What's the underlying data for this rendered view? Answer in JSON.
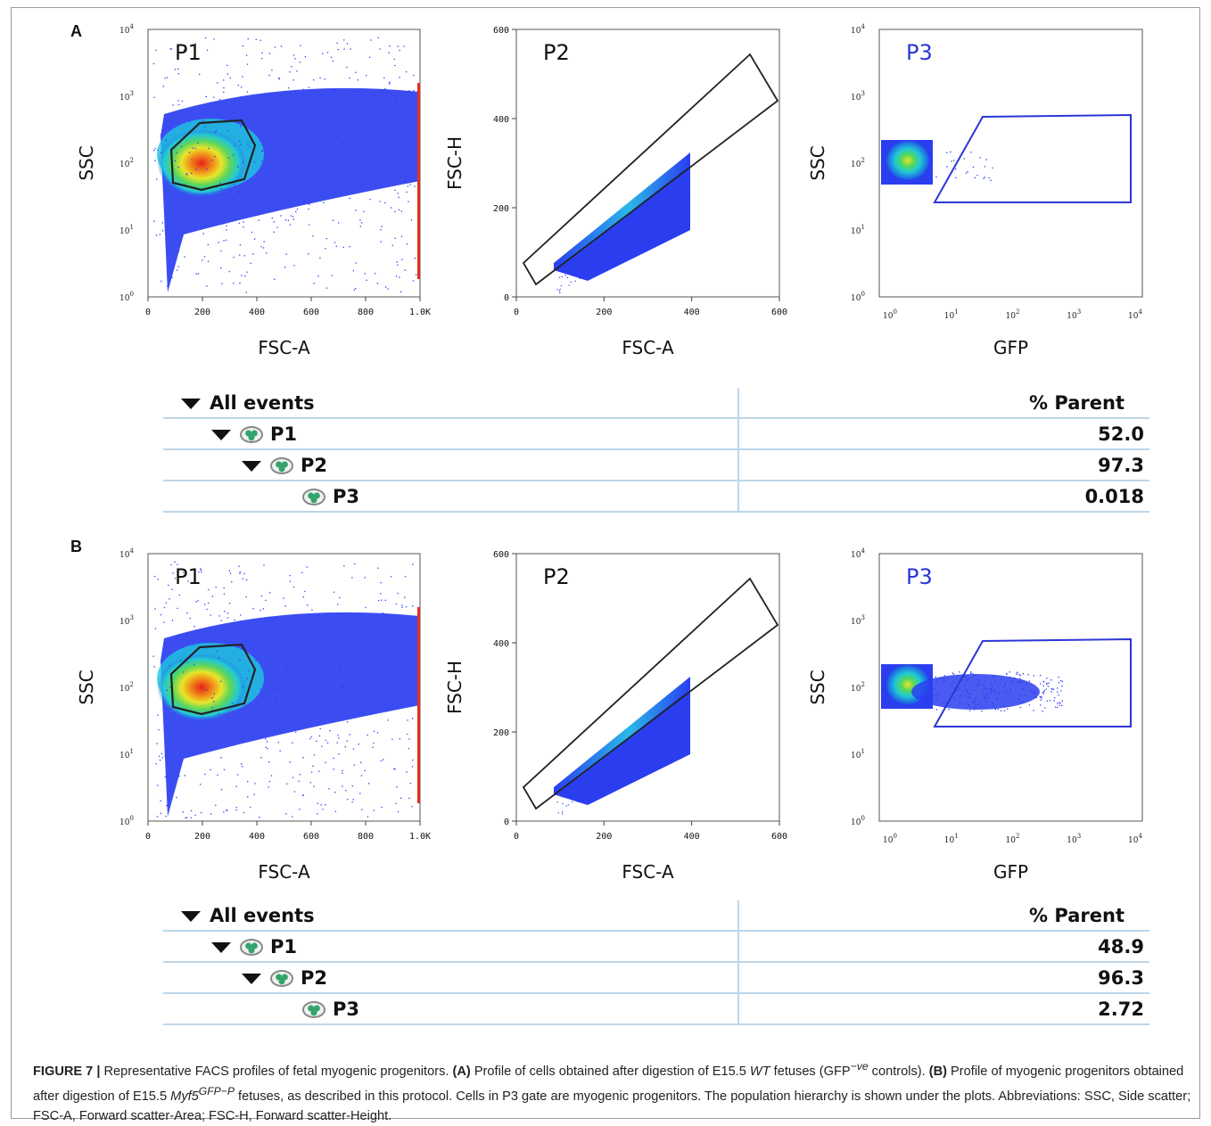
{
  "figure": {
    "panels": [
      {
        "letter": "A",
        "plots": {
          "p1": {
            "gate": "P1",
            "xlabel": "FSC-A",
            "ylabel": "SSC",
            "xticks": [
              "0",
              "200",
              "400",
              "600",
              "800",
              "1.0K"
            ],
            "yticks": [
              "10",
              "10",
              "10",
              "10",
              "10"
            ],
            "ytick_exp": [
              "0",
              "1",
              "2",
              "3",
              "4"
            ]
          },
          "p2": {
            "gate": "P2",
            "xlabel": "FSC-A",
            "ylabel": "FSC-H",
            "xticks": [
              "0",
              "200",
              "400",
              "600"
            ],
            "yticks": [
              "0",
              "200",
              "400",
              "600"
            ]
          },
          "p3": {
            "gate": "P3",
            "xlabel": "GFP",
            "ylabel": "SSC",
            "xticks": [
              "10",
              "10",
              "10",
              "10",
              "10"
            ],
            "xtick_exp": [
              "0",
              "1",
              "2",
              "3",
              "4"
            ],
            "yticks": [
              "10",
              "10",
              "10",
              "10",
              "10"
            ],
            "ytick_exp": [
              "0",
              "1",
              "2",
              "3",
              "4"
            ]
          }
        },
        "hierarchy": {
          "header": "% Parent",
          "rows": [
            {
              "label": "All events",
              "value": ""
            },
            {
              "label": "P1",
              "value": "52.0"
            },
            {
              "label": "P2",
              "value": "97.3"
            },
            {
              "label": "P3",
              "value": "0.018"
            }
          ]
        }
      },
      {
        "letter": "B",
        "plots": {
          "p1": {
            "gate": "P1",
            "xlabel": "FSC-A",
            "ylabel": "SSC",
            "xticks": [
              "0",
              "200",
              "400",
              "600",
              "800",
              "1.0K"
            ],
            "yticks": [
              "10",
              "10",
              "10",
              "10",
              "10"
            ],
            "ytick_exp": [
              "0",
              "1",
              "2",
              "3",
              "4"
            ]
          },
          "p2": {
            "gate": "P2",
            "xlabel": "FSC-A",
            "ylabel": "FSC-H",
            "xticks": [
              "0",
              "200",
              "400",
              "600"
            ],
            "yticks": [
              "0",
              "200",
              "400",
              "600"
            ]
          },
          "p3": {
            "gate": "P3",
            "xlabel": "GFP",
            "ylabel": "SSC",
            "xticks": [
              "10",
              "10",
              "10",
              "10",
              "10"
            ],
            "xtick_exp": [
              "0",
              "1",
              "2",
              "3",
              "4"
            ],
            "yticks": [
              "10",
              "10",
              "10",
              "10",
              "10"
            ],
            "ytick_exp": [
              "0",
              "1",
              "2",
              "3",
              "4"
            ]
          }
        },
        "hierarchy": {
          "header": "% Parent",
          "rows": [
            {
              "label": "All events",
              "value": ""
            },
            {
              "label": "P1",
              "value": "48.9"
            },
            {
              "label": "P2",
              "value": "96.3"
            },
            {
              "label": "P3",
              "value": "2.72"
            }
          ]
        }
      }
    ],
    "caption": {
      "label": "FIGURE 7 |",
      "t1": " Representative FACS profiles of fetal myogenic progenitors. ",
      "a": "(A)",
      "t2": " Profile of cells obtained after digestion of E15.5 ",
      "wt": "WT",
      "t3": " fetuses (GFP",
      "sup1": "−ve",
      "t4": " controls). ",
      "b": "(B)",
      "t5": " Profile of myogenic progenitors obtained after digestion of E15.5 ",
      "myf": "Myf5",
      "sup2": "GFP−P",
      "t6": " fetuses, as described in this protocol. Cells in P3 gate are myogenic progenitors. The population hierarchy is shown under the plots. Abbreviations: SSC, Side scatter; FSC-A, Forward scatter-Area; FSC-H, Forward scatter-Height."
    },
    "colors": {
      "gate_p1": "#222222",
      "gate_p2": "#222222",
      "gate_p3": "#2b36d6",
      "p3_label": "#2b36d6",
      "table_rule": "#bcd6ea"
    }
  }
}
